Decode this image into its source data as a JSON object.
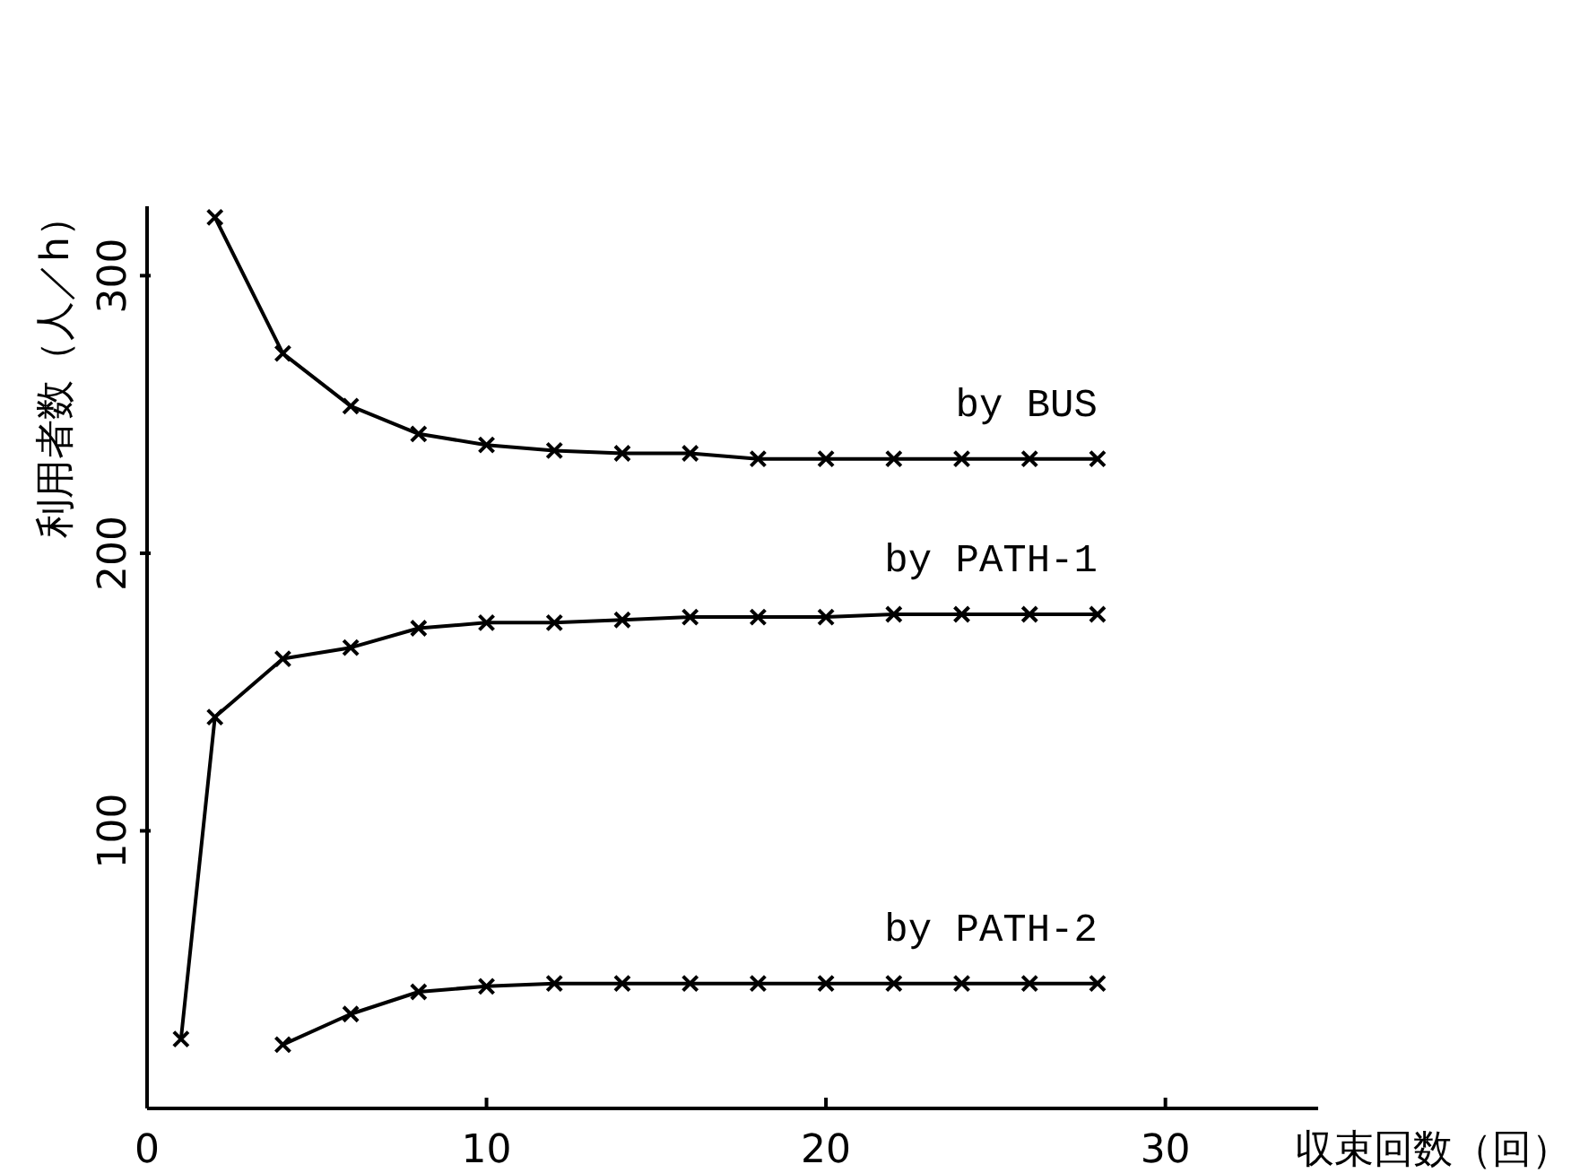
{
  "chart_data": {
    "type": "line",
    "xlabel": "収束回数（回）",
    "ylabel": "利用者数（人／h）",
    "xlim": [
      0,
      34.5
    ],
    "ylim": [
      0,
      325
    ],
    "xticks": [
      0,
      10,
      20,
      30
    ],
    "yticks": [
      100,
      200,
      300
    ],
    "marker": "cross",
    "line_style": "solid",
    "series": [
      {
        "name": "by BUS",
        "color": "#000000",
        "x": [
          2,
          4,
          6,
          8,
          10,
          12,
          14,
          16,
          18,
          20,
          22,
          24,
          26,
          28
        ],
        "values": [
          321,
          272,
          253,
          243,
          239,
          237,
          236,
          236,
          234,
          234,
          234,
          234,
          234,
          234
        ]
      },
      {
        "name": "by PATH-1",
        "color": "#000000",
        "x": [
          1,
          2,
          4,
          6,
          8,
          10,
          12,
          14,
          16,
          18,
          20,
          22,
          24,
          26,
          28
        ],
        "values": [
          25,
          141,
          162,
          166,
          173,
          175,
          175,
          176,
          177,
          177,
          177,
          178,
          178,
          178,
          178
        ]
      },
      {
        "name": "by PATH-2",
        "color": "#000000",
        "x": [
          4,
          6,
          8,
          10,
          12,
          14,
          16,
          18,
          20,
          22,
          24,
          26,
          28
        ],
        "values": [
          23,
          34,
          42,
          44,
          45,
          45,
          45,
          45,
          45,
          45,
          45,
          45,
          45
        ]
      }
    ]
  }
}
